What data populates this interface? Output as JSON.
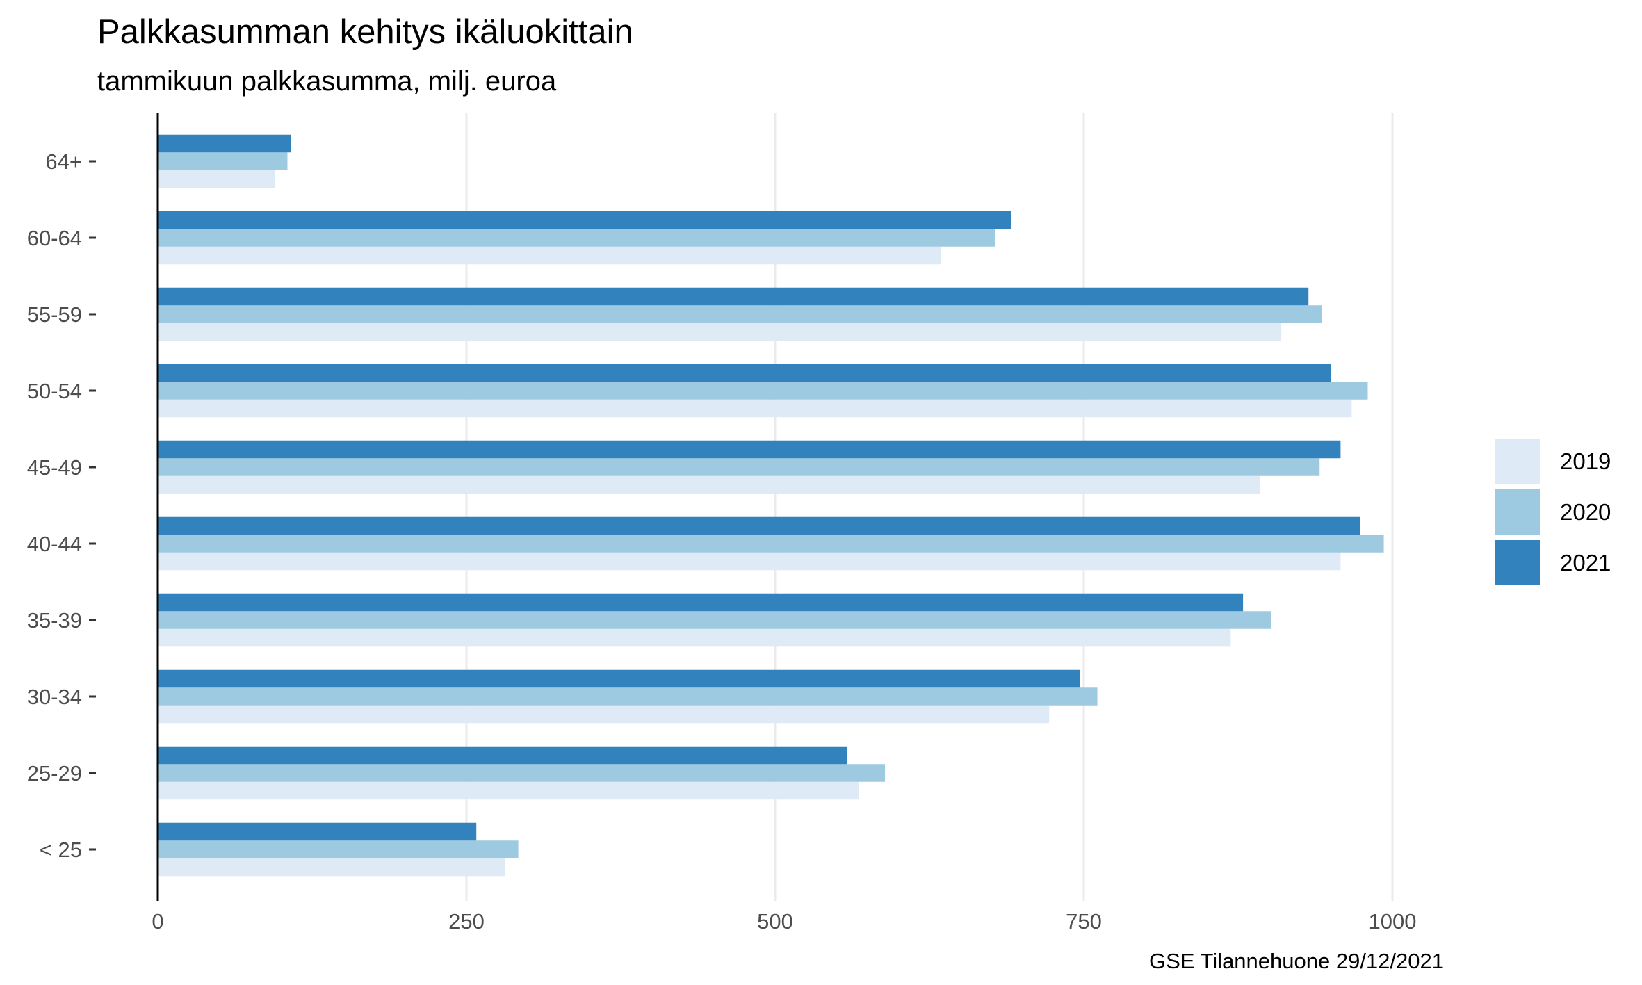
{
  "chart_data": {
    "type": "bar",
    "orientation": "horizontal",
    "title": "Palkkasumman kehitys ikäluokittain",
    "subtitle": "tammikuun palkkasumma, milj. euroa",
    "caption": "GSE Tilannehuone 29/12/2021",
    "xlabel": "",
    "ylabel": "",
    "xlim": [
      0,
      1100
    ],
    "x_ticks": [
      "0",
      "250",
      "500",
      "750",
      "1000"
    ],
    "grid": true,
    "legend_position": "right",
    "categories": [
      "64+",
      "60-64",
      "55-59",
      "50-54",
      "45-49",
      "40-44",
      "35-39",
      "30-34",
      "25-29",
      "< 25"
    ],
    "series": [
      {
        "name": "2019",
        "color": "#deebf7",
        "values": [
          95,
          634,
          910,
          967,
          893,
          958,
          869,
          722,
          568,
          281
        ]
      },
      {
        "name": "2020",
        "color": "#9ecae1",
        "values": [
          105,
          678,
          943,
          980,
          941,
          993,
          902,
          761,
          589,
          292
        ]
      },
      {
        "name": "2021",
        "color": "#3182bd",
        "values": [
          108,
          691,
          932,
          950,
          958,
          974,
          879,
          747,
          558,
          258
        ]
      }
    ]
  }
}
